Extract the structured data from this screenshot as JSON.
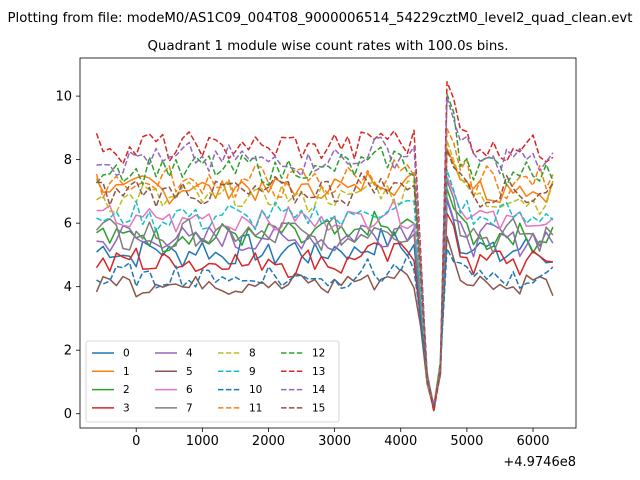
{
  "chart_data": {
    "type": "line",
    "suptitle": "Plotting from file: modeM0/AS1C09_004T08_9000006514_54229cztM0_level2_quad_clean.evt",
    "title": "Quadrant 1 module wise count rates with 100.0s bins.",
    "xlabel": "",
    "ylabel": "",
    "x_offset_label": "+4.9746e8",
    "xlim": [
      -850,
      6650
    ],
    "ylim": [
      -0.45,
      11.2
    ],
    "xticks": [
      0,
      1000,
      2000,
      3000,
      4000,
      5000,
      6000
    ],
    "xtick_labels": [
      "0",
      "1000",
      "2000",
      "3000",
      "4000",
      "5000",
      "6000"
    ],
    "yticks": [
      0,
      2,
      4,
      6,
      8,
      10
    ],
    "ytick_labels": [
      "0",
      "2",
      "4",
      "6",
      "8",
      "10"
    ],
    "grid": false,
    "legend_position": "lower-left",
    "legend_columns": 4,
    "series": [
      {
        "name": "0",
        "color": "#1f77b4",
        "dash": "solid",
        "level": 5.1,
        "amp": 0.35,
        "peak": 6.8
      },
      {
        "name": "1",
        "color": "#ff7f0e",
        "dash": "solid",
        "level": 7.1,
        "amp": 0.3,
        "peak": 8.5
      },
      {
        "name": "2",
        "color": "#2ca02c",
        "dash": "solid",
        "level": 5.6,
        "amp": 0.35,
        "peak": 7.2
      },
      {
        "name": "3",
        "color": "#d62728",
        "dash": "solid",
        "level": 4.8,
        "amp": 0.35,
        "peak": 6.6
      },
      {
        "name": "4",
        "color": "#9467bd",
        "dash": "solid",
        "level": 5.5,
        "amp": 0.35,
        "peak": 7.0
      },
      {
        "name": "5",
        "color": "#8c564b",
        "dash": "solid",
        "level": 4.1,
        "amp": 0.25,
        "peak": 5.6
      },
      {
        "name": "6",
        "color": "#e377c2",
        "dash": "solid",
        "level": 6.1,
        "amp": 0.3,
        "peak": 7.6
      },
      {
        "name": "7",
        "color": "#7f7f7f",
        "dash": "solid",
        "level": 5.6,
        "amp": 0.4,
        "peak": 7.4
      },
      {
        "name": "8",
        "color": "#bcbd22",
        "dash": "dashed",
        "level": 6.8,
        "amp": 0.35,
        "peak": 8.7
      },
      {
        "name": "9",
        "color": "#17becf",
        "dash": "dashed",
        "level": 6.2,
        "amp": 0.3,
        "peak": 7.8
      },
      {
        "name": "10",
        "color": "#1f77b4",
        "dash": "dashed",
        "level": 4.3,
        "amp": 0.3,
        "peak": 5.4
      },
      {
        "name": "11",
        "color": "#ff7f0e",
        "dash": "dashed",
        "level": 7.3,
        "amp": 0.35,
        "peak": 9.2
      },
      {
        "name": "12",
        "color": "#2ca02c",
        "dash": "dashed",
        "level": 7.7,
        "amp": 0.35,
        "peak": 10.2
      },
      {
        "name": "13",
        "color": "#d62728",
        "dash": "dashed",
        "level": 8.4,
        "amp": 0.35,
        "peak": 10.7
      },
      {
        "name": "14",
        "color": "#9467bd",
        "dash": "dashed",
        "level": 8.0,
        "amp": 0.35,
        "peak": 10.0
      },
      {
        "name": "15",
        "color": "#8c564b",
        "dash": "dashed",
        "level": 7.0,
        "amp": 0.3,
        "peak": 8.4
      }
    ]
  }
}
